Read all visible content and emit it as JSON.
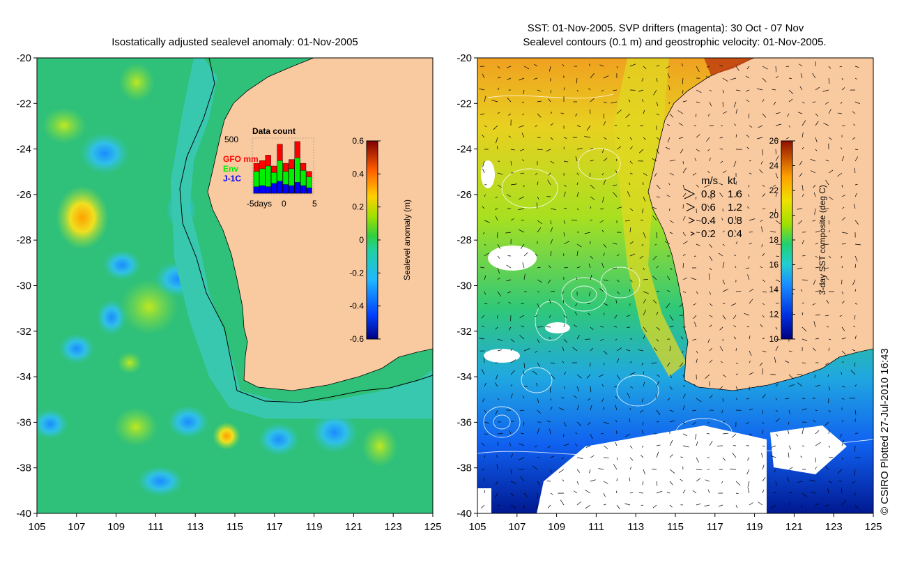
{
  "left_panel": {
    "title": "Isostatically adjusted sealevel anomaly: 01-Nov-2005",
    "x_ticks": [
      "105",
      "107",
      "109",
      "111",
      "113",
      "115",
      "117",
      "119",
      "121",
      "123",
      "125"
    ],
    "y_ticks": [
      "-20",
      "-22",
      "-24",
      "-26",
      "-28",
      "-30",
      "-32",
      "-34",
      "-36",
      "-38",
      "-40"
    ],
    "colorbar": {
      "label": "Sealevel anomaly (m)",
      "ticks": [
        "0.6",
        "0.4",
        "0.2",
        "0",
        "-0.2",
        "-0.4",
        "-0.6"
      ]
    },
    "inset": {
      "title": "Data count",
      "ymax_label": "500",
      "legend": [
        {
          "text": "GFO mm",
          "color": "#ff0000"
        },
        {
          "text": "Env",
          "color": "#00ee00"
        },
        {
          "text": "J-1C",
          "color": "#0000ff"
        }
      ],
      "x_labels": {
        "left": "-5days",
        "mid": "0",
        "right": "5"
      },
      "bars": [
        {
          "red": 0.55,
          "green": 0.4,
          "blue": 0.12
        },
        {
          "red": 0.6,
          "green": 0.45,
          "blue": 0.14
        },
        {
          "red": 0.7,
          "green": 0.5,
          "blue": 0.12
        },
        {
          "red": 0.5,
          "green": 0.38,
          "blue": 0.18
        },
        {
          "red": 0.9,
          "green": 0.6,
          "blue": 0.22
        },
        {
          "red": 0.55,
          "green": 0.4,
          "blue": 0.16
        },
        {
          "red": 0.62,
          "green": 0.45,
          "blue": 0.14
        },
        {
          "red": 0.95,
          "green": 0.65,
          "blue": 0.2
        },
        {
          "red": 0.55,
          "green": 0.42,
          "blue": 0.14
        },
        {
          "red": 0.4,
          "green": 0.3,
          "blue": 0.1
        }
      ]
    }
  },
  "right_panel": {
    "title_line1": "SST: 01-Nov-2005. SVP drifters (magenta): 30 Oct - 07 Nov",
    "title_line2": "Sealevel contours (0.1 m) and geostrophic velocity: 01-Nov-2005.",
    "x_ticks": [
      "105",
      "107",
      "109",
      "111",
      "113",
      "115",
      "117",
      "119",
      "121",
      "123",
      "125"
    ],
    "y_ticks": [
      "-20",
      "-22",
      "-24",
      "-26",
      "-28",
      "-30",
      "-32",
      "-34",
      "-36",
      "-38",
      "-40"
    ],
    "colorbar": {
      "label": "3-day SST composite (deg C)",
      "ticks": [
        "26",
        "24",
        "22",
        "20",
        "18",
        "16",
        "14",
        "12",
        "10"
      ]
    },
    "velocity_legend": {
      "header_ms": "m/s",
      "header_kt": "kt",
      "rows": [
        {
          "ms": "0.8",
          "kt": "1.6"
        },
        {
          "ms": "0.6",
          "kt": "1.2"
        },
        {
          "ms": "0.4",
          "kt": "0.8"
        },
        {
          "ms": "0.2",
          "kt": "0.4"
        }
      ]
    }
  },
  "credit": "© CSIRO Plotted 27-Jul-2010 16:43",
  "colors": {
    "land": "#f9c9a0",
    "ocean_green": "#2fc07a",
    "shelf_teal": "#38c8b0"
  }
}
